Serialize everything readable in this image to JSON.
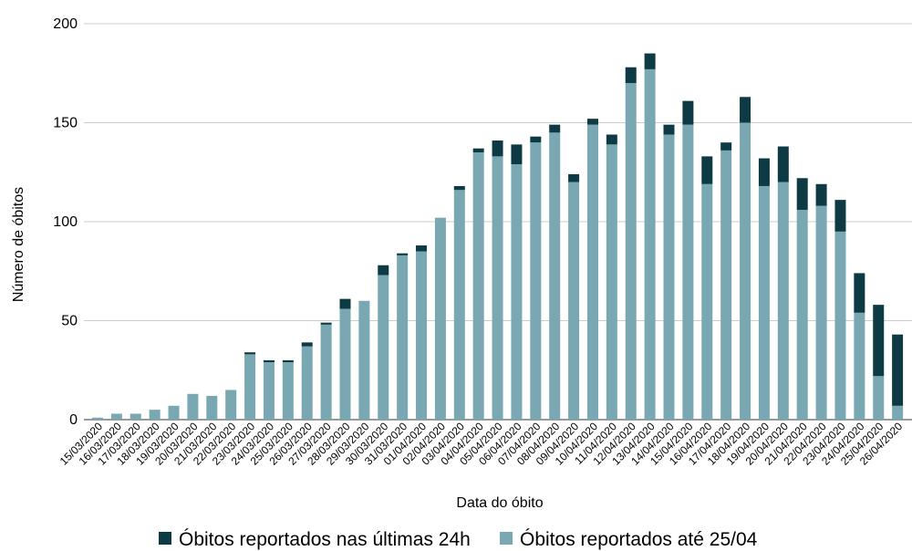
{
  "chart_data": {
    "type": "bar",
    "stacked": true,
    "xlabel": "Data do óbito",
    "ylabel": "Número de óbitos",
    "ylim": [
      0,
      200
    ],
    "yticks": [
      0,
      50,
      100,
      150,
      200
    ],
    "grid": true,
    "legend_position": "bottom",
    "categories": [
      "15/03/2020",
      "16/03/2020",
      "17/03/2020",
      "18/03/2020",
      "19/03/2020",
      "20/03/2020",
      "21/03/2020",
      "22/03/2020",
      "23/03/2020",
      "24/03/2020",
      "25/03/2020",
      "26/03/2020",
      "27/03/2020",
      "28/03/2020",
      "29/03/2020",
      "30/03/2020",
      "31/03/2020",
      "01/04/2020",
      "02/04/2020",
      "03/04/2020",
      "04/04/2020",
      "05/04/2020",
      "06/04/2020",
      "07/04/2020",
      "08/04/2020",
      "09/04/2020",
      "10/04/2020",
      "11/04/2020",
      "12/04/2020",
      "13/04/2020",
      "14/04/2020",
      "15/04/2020",
      "16/04/2020",
      "17/04/2020",
      "18/04/2020",
      "19/04/2020",
      "20/04/2020",
      "21/04/2020",
      "22/04/2020",
      "23/04/2020",
      "24/04/2020",
      "25/04/2020",
      "26/04/2020"
    ],
    "series": [
      {
        "name": "Óbitos reportados até 25/04",
        "color": "#79a8b3",
        "values": [
          1,
          3,
          3,
          5,
          7,
          13,
          12,
          15,
          33,
          29,
          29,
          37,
          48,
          56,
          60,
          73,
          83,
          85,
          102,
          116,
          135,
          133,
          129,
          140,
          145,
          120,
          149,
          139,
          170,
          177,
          144,
          149,
          119,
          136,
          150,
          118,
          120,
          106,
          108,
          95,
          54,
          22,
          7
        ]
      },
      {
        "name": "Óbitos reportados nas últimas 24h",
        "color": "#0e3a44",
        "values": [
          0,
          0,
          0,
          0,
          0,
          0,
          0,
          0,
          1,
          1,
          1,
          2,
          1,
          5,
          0,
          5,
          1,
          3,
          0,
          2,
          2,
          8,
          10,
          3,
          4,
          4,
          3,
          5,
          8,
          8,
          5,
          12,
          14,
          4,
          13,
          14,
          18,
          16,
          11,
          16,
          20,
          36,
          36
        ]
      }
    ],
    "legend": [
      {
        "label": "Óbitos reportados nas últimas 24h",
        "color": "#0e3a44"
      },
      {
        "label": "Óbitos reportados até 25/04",
        "color": "#79a8b3"
      }
    ]
  }
}
